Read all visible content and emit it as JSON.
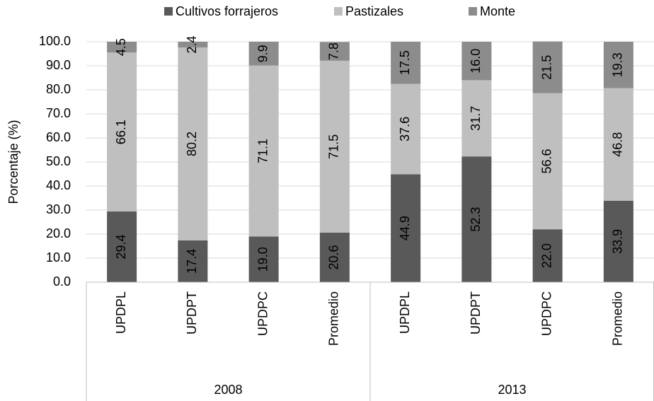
{
  "chart_data": {
    "type": "stacked_bar",
    "y_label": "Porcentaje (%)",
    "categories": [
      "UPDPL",
      "UPDPT",
      "UPDPC",
      "Promedio",
      "UPDPL",
      "UPDPT",
      "UPDPC",
      "Promedio"
    ],
    "groups": [
      {
        "label": "2008",
        "categories": [
          "UPDPL",
          "UPDPT",
          "UPDPC",
          "Promedio"
        ]
      },
      {
        "label": "2013",
        "categories": [
          "UPDPL",
          "UPDPT",
          "UPDPC",
          "Promedio"
        ]
      }
    ],
    "series": [
      {
        "name": "Cultivos forrajeros",
        "color": "#595959",
        "values": [
          29.4,
          17.4,
          19,
          20.6,
          44.9,
          52.3,
          22,
          33.9
        ],
        "value_labels": [
          "29.4",
          "17.4",
          "19.0",
          "20.6",
          "44.9",
          "52.3",
          "22.0",
          "33.9"
        ]
      },
      {
        "name": "Pastizales",
        "color": "#bfbfbf",
        "values": [
          66.1,
          80.2,
          71.1,
          71.5,
          37.6,
          31.7,
          56.6,
          46.8
        ],
        "value_labels": [
          "66.1",
          "80.2",
          "71.1",
          "71.5",
          "37.6",
          "31.7",
          "56.6",
          "46.8"
        ]
      },
      {
        "name": "Monte",
        "color": "#8c8c8c",
        "values": [
          4.5,
          2.4,
          9.9,
          7.8,
          17.5,
          16,
          21.5,
          19.3
        ],
        "value_labels": [
          "4.5",
          "2.4",
          "9.9",
          "7.8",
          "17.5",
          "16.0",
          "21.5",
          "19.3"
        ]
      }
    ],
    "ylim": [
      0,
      100
    ],
    "yticks": [
      {
        "value": 0,
        "label": "0.0"
      },
      {
        "value": 10,
        "label": "10.0"
      },
      {
        "value": 20,
        "label": "20.0"
      },
      {
        "value": 30,
        "label": "30.0"
      },
      {
        "value": 40,
        "label": "40.0"
      },
      {
        "value": 50,
        "label": "50.0"
      },
      {
        "value": 60,
        "label": "60.0"
      },
      {
        "value": 70,
        "label": "70.0"
      },
      {
        "value": 80,
        "label": "80.0"
      },
      {
        "value": 90,
        "label": "90.0"
      },
      {
        "value": 100,
        "label": "100.0"
      }
    ],
    "grid": true,
    "legend": "top"
  }
}
